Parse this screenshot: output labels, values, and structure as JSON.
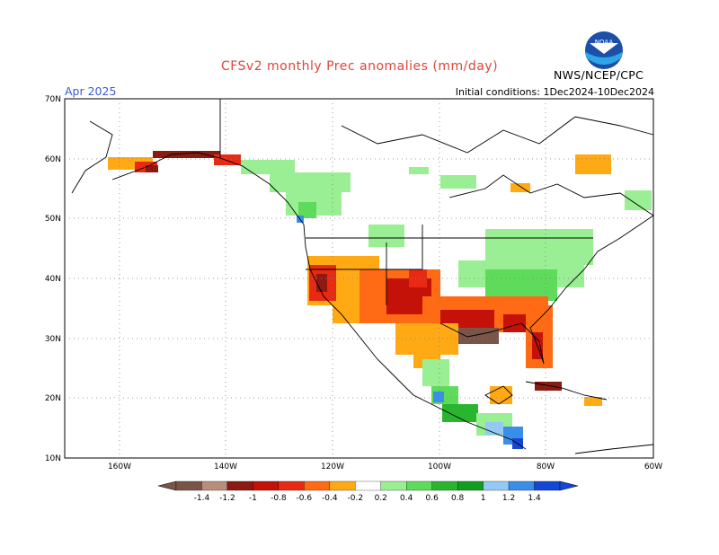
{
  "header": {
    "title": "CFSv2 monthly Prec anomalies (mm/day)",
    "valid_month": "Apr 2025",
    "initial_conditions": "Initial conditions: 1Dec2024-10Dec2024",
    "organization": "NWS/NCEP/CPC",
    "logo_text": "NOAA"
  },
  "map": {
    "lat_labels": [
      "70N",
      "60N",
      "50N",
      "40N",
      "30N",
      "20N",
      "10N"
    ],
    "lon_labels": [
      "160W",
      "140W",
      "120W",
      "100W",
      "80W",
      "60W"
    ],
    "colors": {
      "ocean": "#ffffff",
      "coast": "#000000",
      "grid": "#808080"
    }
  },
  "legend": {
    "labels": [
      "-1.4",
      "-1.2",
      "-1",
      "-0.8",
      "-0.6",
      "-0.4",
      "-0.2",
      "0.2",
      "0.4",
      "0.6",
      "0.8",
      "1",
      "1.2",
      "1.4"
    ],
    "colors": [
      "#7a5447",
      "#b98d7c",
      "#8c1a10",
      "#c41208",
      "#e82a14",
      "#ff6a14",
      "#ffaa14",
      "#ffffff",
      "#9aee93",
      "#5fdb5c",
      "#2ab52e",
      "#139d1e",
      "#95c9f4",
      "#3a8ee8",
      "#1547d5"
    ]
  }
}
